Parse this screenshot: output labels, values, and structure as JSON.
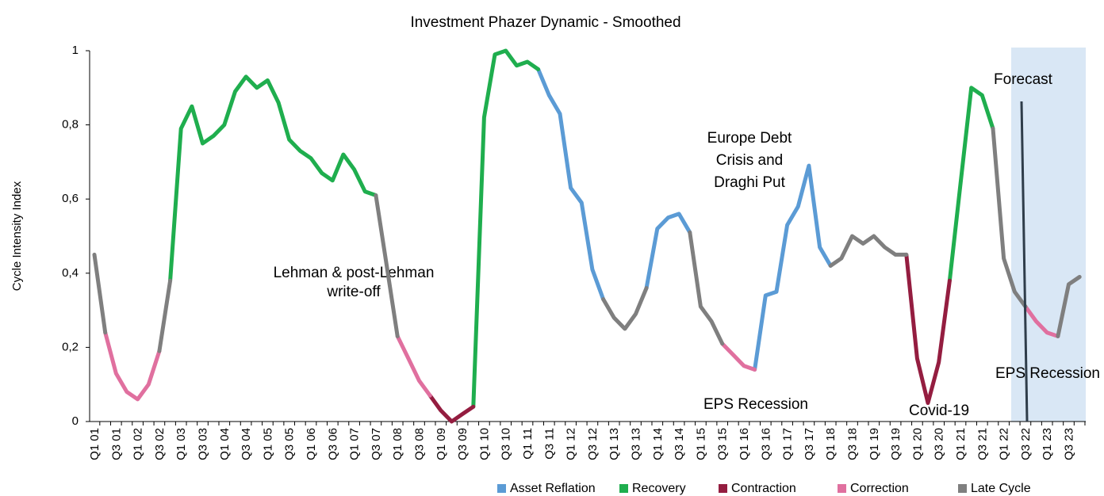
{
  "chart_data": {
    "type": "line",
    "title": "Investment Phazer Dynamic - Smoothed",
    "y_label": "Cycle Intensity Index",
    "categories": [
      "Q1 01",
      null,
      "Q3 01",
      null,
      "Q1 02",
      null,
      "Q3 02",
      null,
      "Q1 03",
      null,
      "Q3 03",
      null,
      "Q1 04",
      null,
      "Q3 04",
      null,
      "Q1 05",
      null,
      "Q3 05",
      null,
      "Q1 06",
      null,
      "Q3 06",
      null,
      "Q1 07",
      null,
      "Q3 07",
      null,
      "Q1 08",
      null,
      "Q3 08",
      null,
      "Q1 09",
      null,
      "Q3 09",
      null,
      "Q1 10",
      null,
      "Q3 10",
      null,
      "Q1 11",
      null,
      "Q3 11",
      null,
      "Q1 12",
      null,
      "Q3 12",
      null,
      "Q1 13",
      null,
      "Q3 13",
      null,
      "Q1 14",
      null,
      "Q3 14",
      null,
      "Q1 15",
      null,
      "Q3 15",
      null,
      "Q1 16",
      null,
      "Q3 16",
      null,
      "Q1 17",
      null,
      "Q3 17",
      null,
      "Q1 18",
      null,
      "Q3 18",
      null,
      "Q1 19",
      null,
      "Q3 19",
      null,
      "Q1 20",
      null,
      "Q3 20",
      null,
      "Q1 21",
      null,
      "Q3 21",
      null,
      "Q1 22",
      null,
      "Q3 22",
      null,
      "Q1 23",
      null,
      "Q3 23",
      null
    ],
    "series": [
      {
        "name": "Asset Reflation",
        "color": "#5b9bd5",
        "values": [
          null,
          null,
          null,
          null,
          null,
          null,
          null,
          null,
          null,
          null,
          null,
          null,
          null,
          null,
          null,
          null,
          null,
          null,
          null,
          null,
          null,
          null,
          null,
          null,
          null,
          null,
          null,
          null,
          null,
          null,
          null,
          null,
          null,
          null,
          null,
          null,
          null,
          null,
          null,
          null,
          null,
          0.95,
          0.88,
          0.83,
          0.63,
          0.59,
          0.41,
          0.33,
          null,
          null,
          null,
          0.36,
          0.52,
          0.55,
          0.56,
          0.51,
          null,
          null,
          null,
          null,
          null,
          0.14,
          0.34,
          0.35,
          0.53,
          0.58,
          0.69,
          0.47,
          0.42,
          null,
          null,
          null,
          null,
          null,
          null,
          null,
          null,
          null,
          null,
          null,
          null,
          null,
          null,
          null,
          null,
          null,
          null,
          null,
          null,
          null,
          null,
          null
        ]
      },
      {
        "name": "Recovery",
        "color": "#1fae4e",
        "values": [
          null,
          null,
          null,
          null,
          null,
          null,
          null,
          0.38,
          0.79,
          0.85,
          0.75,
          0.77,
          0.8,
          0.89,
          0.93,
          0.9,
          0.92,
          0.86,
          0.76,
          0.73,
          0.71,
          0.67,
          0.65,
          0.72,
          0.68,
          0.62,
          0.61,
          null,
          null,
          null,
          null,
          null,
          null,
          null,
          null,
          0.04,
          0.82,
          0.99,
          1,
          0.96,
          0.97,
          0.95,
          null,
          null,
          null,
          null,
          null,
          null,
          null,
          null,
          null,
          null,
          null,
          null,
          null,
          null,
          null,
          null,
          null,
          null,
          null,
          null,
          null,
          null,
          null,
          null,
          null,
          null,
          null,
          null,
          null,
          null,
          null,
          null,
          null,
          null,
          null,
          null,
          null,
          0.38,
          0.64,
          0.9,
          0.88,
          0.79,
          null,
          null,
          null,
          null,
          null,
          null,
          null,
          null
        ]
      },
      {
        "name": "Contraction",
        "color": "#941d40",
        "values": [
          null,
          null,
          null,
          null,
          null,
          null,
          null,
          null,
          null,
          null,
          null,
          null,
          null,
          null,
          null,
          null,
          null,
          null,
          null,
          null,
          null,
          null,
          null,
          null,
          null,
          null,
          null,
          null,
          null,
          null,
          null,
          0.07,
          0.03,
          0,
          0.02,
          0.04,
          null,
          null,
          null,
          null,
          null,
          null,
          null,
          null,
          null,
          null,
          null,
          null,
          null,
          null,
          null,
          null,
          null,
          null,
          null,
          null,
          null,
          null,
          null,
          null,
          null,
          null,
          null,
          null,
          null,
          null,
          null,
          null,
          null,
          null,
          null,
          null,
          null,
          null,
          null,
          0.45,
          0.17,
          0.05,
          0.16,
          0.38,
          null,
          null,
          null,
          null,
          null,
          null,
          null,
          null,
          null,
          null,
          null,
          null
        ]
      },
      {
        "name": "Correction",
        "color": "#e0709f",
        "values": [
          null,
          0.24,
          0.13,
          0.08,
          0.06,
          0.1,
          0.19,
          null,
          null,
          null,
          null,
          null,
          null,
          null,
          null,
          null,
          null,
          null,
          null,
          null,
          null,
          null,
          null,
          null,
          null,
          null,
          null,
          null,
          0.23,
          0.17,
          0.11,
          0.07,
          null,
          null,
          null,
          null,
          null,
          null,
          null,
          null,
          null,
          null,
          null,
          null,
          null,
          null,
          null,
          null,
          null,
          null,
          null,
          null,
          null,
          null,
          null,
          null,
          null,
          null,
          0.21,
          0.18,
          0.15,
          0.14,
          null,
          null,
          null,
          null,
          null,
          null,
          null,
          null,
          null,
          null,
          null,
          null,
          null,
          null,
          null,
          null,
          null,
          null,
          null,
          null,
          null,
          null,
          null,
          null,
          0.31,
          0.27,
          0.24,
          0.23,
          null,
          null
        ]
      },
      {
        "name": "Late Cycle",
        "color": "#7f7f7f",
        "values": [
          0.45,
          0.24,
          null,
          null,
          null,
          null,
          0.19,
          0.38,
          null,
          null,
          null,
          null,
          null,
          null,
          null,
          null,
          null,
          null,
          null,
          null,
          null,
          null,
          null,
          null,
          null,
          null,
          0.61,
          0.42,
          0.23,
          null,
          null,
          null,
          null,
          null,
          null,
          null,
          null,
          null,
          null,
          null,
          null,
          null,
          null,
          null,
          null,
          null,
          null,
          0.33,
          0.28,
          0.25,
          0.29,
          0.36,
          null,
          null,
          null,
          0.51,
          0.31,
          0.27,
          0.21,
          null,
          null,
          null,
          null,
          null,
          null,
          null,
          null,
          null,
          0.42,
          0.44,
          0.5,
          0.48,
          0.5,
          0.47,
          0.45,
          0.45,
          null,
          null,
          null,
          null,
          null,
          null,
          null,
          0.79,
          0.44,
          0.35,
          0.31,
          null,
          null,
          0.23,
          0.37,
          0.39
        ]
      }
    ],
    "ylim": [
      0,
      1
    ],
    "yticks": [
      0,
      {
        "value": 0.2,
        "label": "0,2"
      },
      {
        "value": 0.4,
        "label": "0,4"
      },
      {
        "value": 0.6,
        "label": "0,6"
      },
      {
        "value": 0.8,
        "label": "0,8"
      },
      1
    ],
    "grid": false,
    "legend": "bottom",
    "annotations": [
      [
        "Lehman & post-Lehman",
        "write-off"
      ],
      [
        "Europe Debt",
        "Crisis and",
        "Draghi Put"
      ],
      [
        "EPS Recession"
      ],
      [
        "Covid-19"
      ],
      [
        "Forecast"
      ],
      [
        "EPS Recession"
      ]
    ]
  }
}
